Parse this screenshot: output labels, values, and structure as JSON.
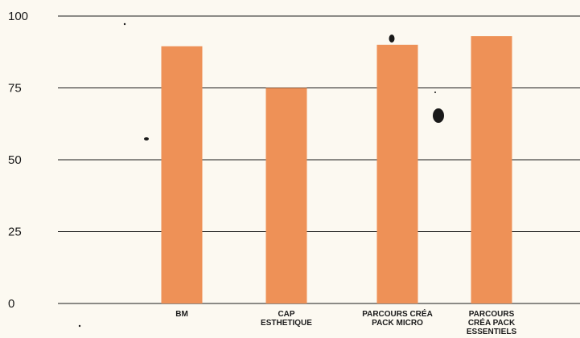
{
  "chart_data": {
    "type": "bar",
    "categories": [
      [
        "BM"
      ],
      [
        "CAP",
        "ESTHETIQUE"
      ],
      [
        "PARCOURS CRÉA",
        "PACK MICRO"
      ],
      [
        "PARCOURS",
        "CRÉA PACK",
        "ESSENTIELS"
      ]
    ],
    "values": [
      89.5,
      75,
      90,
      93
    ],
    "ylim": [
      0,
      100
    ],
    "yticks": [
      "0",
      "25",
      "50",
      "75",
      "100"
    ],
    "grid": true,
    "colors": {
      "bar": "#ee9157",
      "grid": "#1a1a1a",
      "background": "#fcf9f1",
      "text": "#1a1a1a"
    }
  }
}
